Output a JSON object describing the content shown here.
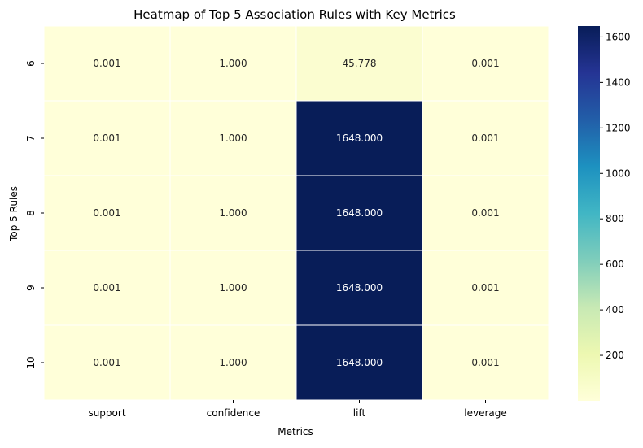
{
  "chart_data": {
    "type": "heatmap",
    "title": "Heatmap of Top 5 Association Rules with Key Metrics",
    "xlabel": "Metrics",
    "ylabel": "Top 5 Rules",
    "x_categories": [
      "support",
      "confidence",
      "lift",
      "leverage"
    ],
    "y_categories": [
      "6",
      "7",
      "8",
      "9",
      "10"
    ],
    "values": [
      [
        0.001,
        1.0,
        45.778,
        0.001
      ],
      [
        0.001,
        1.0,
        1648.0,
        0.001
      ],
      [
        0.001,
        1.0,
        1648.0,
        0.001
      ],
      [
        0.001,
        1.0,
        1648.0,
        0.001
      ],
      [
        0.001,
        1.0,
        1648.0,
        0.001
      ]
    ],
    "value_labels": [
      [
        "0.001",
        "1.000",
        "45.778",
        "0.001"
      ],
      [
        "0.001",
        "1.000",
        "1648.000",
        "0.001"
      ],
      [
        "0.001",
        "1.000",
        "1648.000",
        "0.001"
      ],
      [
        "0.001",
        "1.000",
        "1648.000",
        "0.001"
      ],
      [
        "0.001",
        "1.000",
        "1648.000",
        "0.001"
      ]
    ],
    "colormap": "YlGnBu",
    "color_range": [
      0.001,
      1648.0
    ],
    "colorbar_ticks": [
      "200",
      "400",
      "600",
      "800",
      "1000",
      "1200",
      "1400",
      "1600"
    ],
    "gridlines": "white cell separators",
    "legend": "colorbar-right"
  }
}
